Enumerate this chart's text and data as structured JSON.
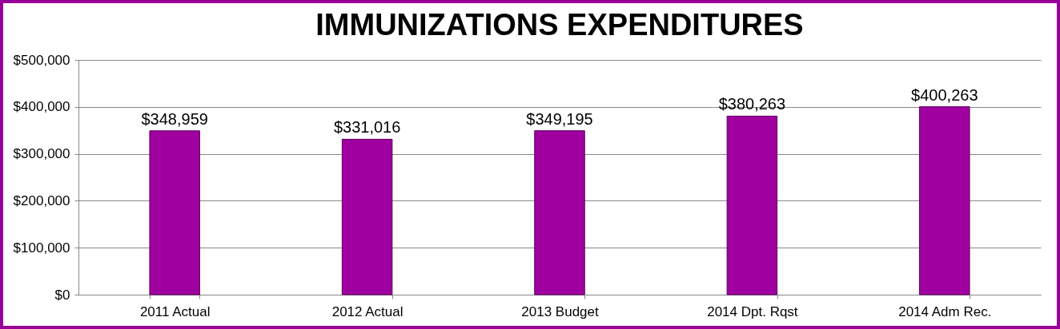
{
  "chart_data": {
    "type": "bar",
    "title": "IMMUNIZATIONS EXPENDITURES",
    "categories": [
      "2011 Actual",
      "2012 Actual",
      "2013 Budget",
      "2014 Dpt. Rqst",
      "2014 Adm Rec."
    ],
    "values": [
      348959,
      331016,
      349195,
      380263,
      400263
    ],
    "value_labels": [
      "$348,959",
      "$331,016",
      "$349,195",
      "$380,263",
      "$400,263"
    ],
    "color": "#a000a0",
    "ylim": [
      0,
      500000
    ],
    "yticks": [
      {
        "value": 0,
        "label": "$0"
      },
      {
        "value": 100000,
        "label": "$100,000"
      },
      {
        "value": 200000,
        "label": "$200,000"
      },
      {
        "value": 300000,
        "label": "$300,000"
      },
      {
        "value": 400000,
        "label": "$400,000"
      },
      {
        "value": 500000,
        "label": "$500,000"
      }
    ],
    "grid": "y"
  }
}
